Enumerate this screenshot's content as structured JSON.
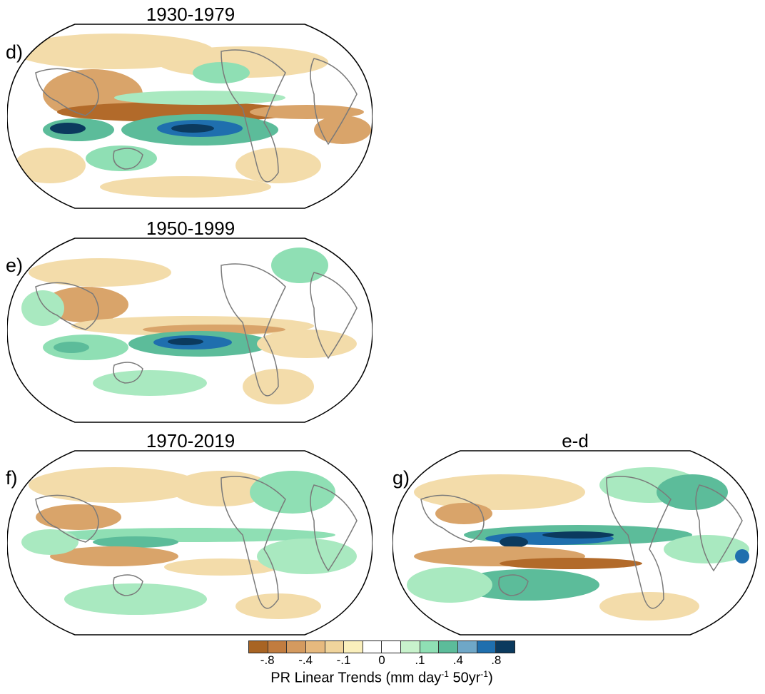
{
  "panels": [
    {
      "id": "d",
      "letter": "d)",
      "title": "1930-1979"
    },
    {
      "id": "e",
      "letter": "e)",
      "title": "1950-1999"
    },
    {
      "id": "f",
      "letter": "f)",
      "title": "1970-2019"
    },
    {
      "id": "g",
      "letter": "g)",
      "title": "e-d"
    }
  ],
  "colorbar": {
    "colors": [
      "#a86424",
      "#c17c3f",
      "#d49a5f",
      "#e6b97e",
      "#f0d49c",
      "#faefbc",
      "#ffffff",
      "#ffffff",
      "#c8f2cc",
      "#8fdfb4",
      "#5cbc9a",
      "#6fa7c7",
      "#1f6fae",
      "#0b3a5e"
    ],
    "tick_labels": [
      "-.8",
      "-.4",
      "-.1",
      "0",
      ".1",
      ".4",
      ".8"
    ],
    "label_prefix": "PR Linear Trends (mm day",
    "label_sup1": "-1",
    "label_mid": " 50yr",
    "label_sup2": "-1",
    "label_suffix": ")"
  },
  "legend_colors": {
    "coast": "#7a7a7a",
    "dry_strong": "#b26a2a",
    "dry_mid": "#d9a46a",
    "dry_light": "#f3dcaa",
    "wet_light": "#a9e9c0",
    "wet_mid": "#5cbc9a",
    "wet_strong": "#1f6fae",
    "wet_max": "#0b3a5e"
  }
}
